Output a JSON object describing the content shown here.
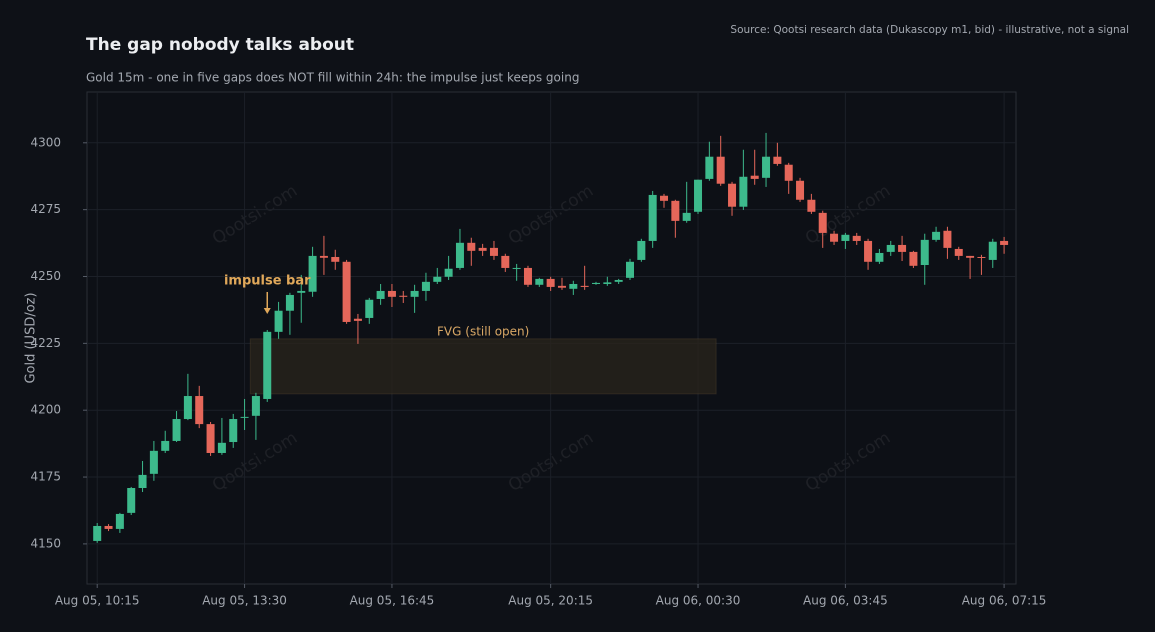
{
  "chart_data": {
    "type": "candlestick",
    "title": "The gap nobody talks about",
    "subtitle": "Gold 15m - one in five gaps does NOT fill within 24h: the impulse just keeps going",
    "source": "Source: Qootsi research data (Dukascopy m1, bid) - illustrative, not a signal",
    "watermark": "Qootsi.com",
    "ylabel": "Gold (USD/oz)",
    "up_color": "#3dba8c",
    "down_color": "#e5675a",
    "grid": true,
    "xlim": [
      -0.9,
      81.05
    ],
    "ylim": [
      4135,
      4319
    ],
    "yticks": [
      4150,
      4175,
      4200,
      4225,
      4250,
      4275,
      4300
    ],
    "xticks": [
      {
        "value": 0,
        "label": "Aug 05, 10:15"
      },
      {
        "value": 13,
        "label": "Aug 05, 13:30"
      },
      {
        "value": 26,
        "label": "Aug 05, 16:45"
      },
      {
        "value": 40,
        "label": "Aug 05, 20:15"
      },
      {
        "value": 53,
        "label": "Aug 06, 00:30"
      },
      {
        "value": 66,
        "label": "Aug 06, 03:45"
      },
      {
        "value": 80,
        "label": "Aug 06, 07:15"
      }
    ],
    "open": [
      4151.1,
      4156.7,
      4155.6,
      4161.6,
      4170.9,
      4176.2,
      4184.8,
      4188.5,
      4196.7,
      4205.3,
      4194.8,
      4184.0,
      4188.1,
      4197.2,
      4197.9,
      4204.2,
      4229.3,
      4237.2,
      4243.9,
      4244.3,
      4257.7,
      4257.3,
      4255.5,
      4234.2,
      4234.5,
      4241.6,
      4244.6,
      4242.8,
      4242.4,
      4244.6,
      4248.0,
      4249.9,
      4253.2,
      4262.6,
      4260.7,
      4260.7,
      4257.7,
      4252.9,
      4253.2,
      4246.9,
      4249.1,
      4246.5,
      4245.4,
      4246.5,
      4247.2,
      4247.2,
      4248.0,
      4249.5,
      4256.2,
      4263.3,
      4280.2,
      4278.3,
      4270.8,
      4274.2,
      4286.5,
      4294.8,
      4284.7,
      4276.1,
      4287.7,
      4286.9,
      4294.8,
      4291.8,
      4285.8,
      4278.7,
      4273.8,
      4266.0,
      4263.3,
      4265.2,
      4263.3,
      4255.5,
      4259.2,
      4261.8,
      4259.2,
      4254.3,
      4263.7,
      4267.1,
      4260.3,
      4257.7,
      4257.3,
      4256.2,
      4263.3
    ],
    "high": [
      4157.8,
      4157.4,
      4161.6,
      4171.3,
      4181.0,
      4188.5,
      4192.3,
      4199.7,
      4213.6,
      4209.1,
      4195.6,
      4197.1,
      4198.6,
      4204.2,
      4206.5,
      4230.0,
      4240.5,
      4243.9,
      4250.6,
      4261.1,
      4265.2,
      4260.0,
      4256.2,
      4236.0,
      4242.0,
      4247.2,
      4247.2,
      4244.6,
      4246.9,
      4251.4,
      4253.2,
      4257.7,
      4267.8,
      4264.5,
      4262.2,
      4263.3,
      4258.5,
      4254.7,
      4254.0,
      4249.5,
      4249.9,
      4249.5,
      4248.4,
      4254.0,
      4248.0,
      4249.9,
      4249.1,
      4256.6,
      4264.1,
      4282.0,
      4280.9,
      4278.7,
      4285.4,
      4286.2,
      4300.4,
      4302.6,
      4285.4,
      4297.4,
      4297.4,
      4303.7,
      4300.0,
      4292.5,
      4286.9,
      4280.9,
      4274.6,
      4267.1,
      4266.3,
      4266.3,
      4264.1,
      4260.3,
      4263.3,
      4265.2,
      4259.6,
      4266.0,
      4268.6,
      4268.6,
      4261.1,
      4257.7,
      4258.1,
      4264.1,
      4264.8
    ],
    "low": [
      4150.4,
      4154.8,
      4154.1,
      4160.8,
      4169.4,
      4173.6,
      4184.0,
      4188.1,
      4196.3,
      4193.3,
      4182.9,
      4183.3,
      4185.9,
      4192.6,
      4188.9,
      4203.1,
      4226.7,
      4228.2,
      4232.7,
      4242.4,
      4250.6,
      4252.5,
      4232.3,
      4224.8,
      4232.3,
      4239.4,
      4238.6,
      4240.1,
      4236.4,
      4240.9,
      4247.2,
      4248.7,
      4252.5,
      4254.0,
      4257.7,
      4256.2,
      4251.7,
      4248.4,
      4246.1,
      4246.1,
      4244.6,
      4245.0,
      4243.1,
      4245.0,
      4246.9,
      4246.5,
      4247.2,
      4248.7,
      4255.5,
      4260.7,
      4275.7,
      4264.5,
      4270.1,
      4273.4,
      4285.8,
      4283.9,
      4272.7,
      4274.9,
      4284.3,
      4283.5,
      4291.4,
      4280.9,
      4277.9,
      4273.4,
      4260.7,
      4261.8,
      4260.3,
      4261.8,
      4252.5,
      4254.7,
      4257.7,
      4255.8,
      4253.2,
      4246.9,
      4263.0,
      4256.6,
      4256.2,
      4249.1,
      4250.6,
      4253.2,
      4258.5
    ],
    "close": [
      4156.7,
      4155.6,
      4161.2,
      4170.9,
      4175.8,
      4184.8,
      4188.5,
      4196.7,
      4205.3,
      4194.8,
      4184.0,
      4187.8,
      4196.7,
      4197.5,
      4205.3,
      4229.3,
      4237.2,
      4243.1,
      4244.6,
      4257.7,
      4257.0,
      4255.5,
      4233.0,
      4233.4,
      4241.3,
      4244.6,
      4242.4,
      4242.4,
      4244.6,
      4248.0,
      4249.9,
      4252.9,
      4262.6,
      4259.6,
      4259.6,
      4257.7,
      4253.2,
      4253.2,
      4246.9,
      4249.1,
      4246.1,
      4245.8,
      4247.2,
      4246.1,
      4247.6,
      4247.8,
      4248.7,
      4255.5,
      4263.3,
      4280.5,
      4278.3,
      4270.8,
      4273.8,
      4286.2,
      4294.8,
      4284.7,
      4276.1,
      4287.3,
      4286.5,
      4294.8,
      4292.1,
      4285.8,
      4278.7,
      4274.2,
      4266.3,
      4263.0,
      4265.6,
      4263.3,
      4255.5,
      4258.8,
      4261.8,
      4259.2,
      4254.0,
      4263.7,
      4266.7,
      4260.7,
      4257.7,
      4257.0,
      4257.0,
      4263.0,
      4261.8
    ],
    "zones": [
      {
        "label": "FVG (still open)",
        "x0": 13.5,
        "x1": 54.6,
        "y0": 4206.1,
        "y1": 4226.7,
        "color": "#d9a866"
      }
    ],
    "annotations": [
      {
        "text": "impulse bar",
        "x": 15,
        "color": "#e0a85a"
      }
    ]
  }
}
